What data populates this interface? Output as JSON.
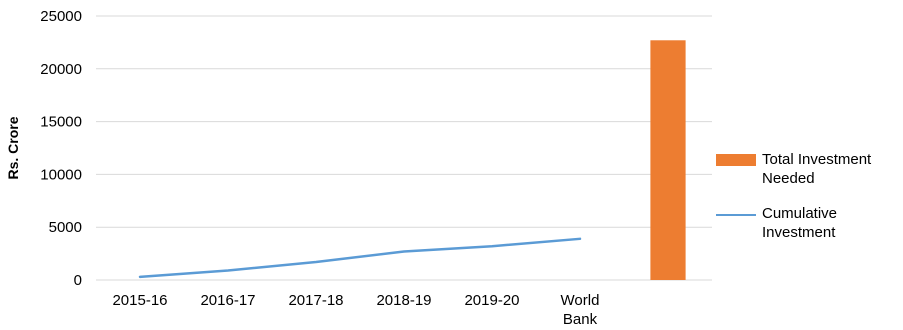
{
  "chart_data": {
    "type": "bar",
    "ylabel": "Rs. Crore",
    "ylim": [
      0,
      25000
    ],
    "yticks": [
      "0",
      "5000",
      "10000",
      "15000",
      "20000",
      "25000"
    ],
    "categories": [
      "2015-16",
      "2016-17",
      "2017-18",
      "2018-19",
      "2019-20",
      "World\nBank",
      ""
    ],
    "grid": true,
    "legend_position": "right",
    "series": [
      {
        "name": "Total Investment\nNeeded",
        "type": "bar",
        "color": "#ED7D31",
        "values": [
          null,
          null,
          null,
          null,
          null,
          null,
          22700
        ]
      },
      {
        "name": "Cumulative\nInvestment",
        "type": "line",
        "color": "#5B9BD5",
        "values": [
          300,
          900,
          1700,
          2700,
          3200,
          3900,
          null
        ]
      }
    ]
  }
}
